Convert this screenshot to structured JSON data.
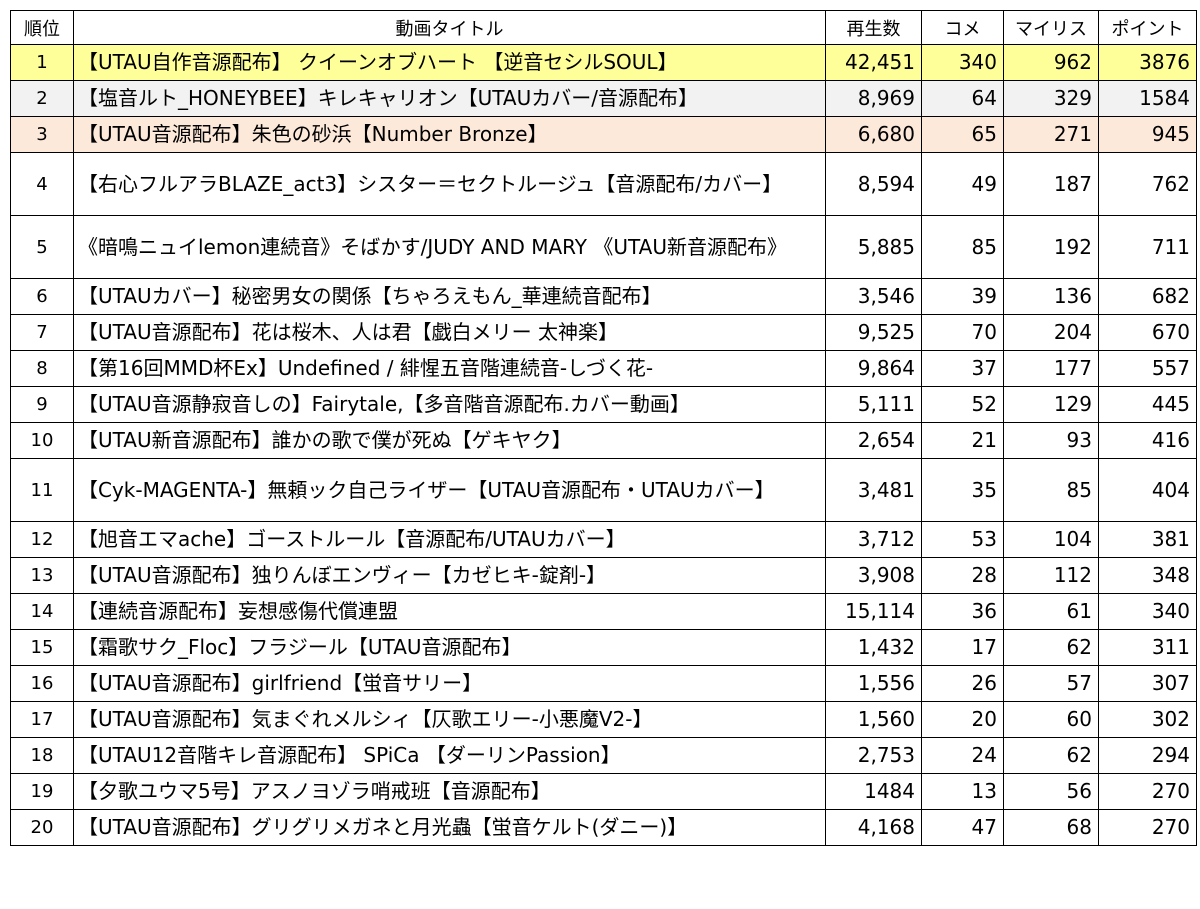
{
  "header": {
    "rank": "順位",
    "title": "動画タイトル",
    "views": "再生数",
    "comments": "コメ",
    "mylist": "マイリス",
    "points": "ポイント"
  },
  "row_colors": {
    "first": "#ffff99",
    "second": "#f2f2f2",
    "third": "#fde9d9",
    "default": "#ffffff"
  },
  "rows": [
    {
      "rank": "1",
      "title": "【UTAU自作音源配布】 クイーンオブハート 【逆音セシルSOUL】",
      "views": "42,451",
      "comments": "340",
      "mylist": "962",
      "points": "3876"
    },
    {
      "rank": "2",
      "title": "【塩音ルト_HONEYBEE】キレキャリオン【UTAUカバー/音源配布】",
      "views": "8,969",
      "comments": "64",
      "mylist": "329",
      "points": "1584"
    },
    {
      "rank": "3",
      "title": "【UTAU音源配布】朱色の砂浜【Number Bronze】",
      "views": "6,680",
      "comments": "65",
      "mylist": "271",
      "points": "945"
    },
    {
      "rank": "4",
      "title": "【右心フルアラBLAZE_act3】シスター＝セクトルージュ【音源配布/カバー】",
      "views": "8,594",
      "comments": "49",
      "mylist": "187",
      "points": "762"
    },
    {
      "rank": "5",
      "title": "《暗鳴ニュイlemon連続音》そばかす/JUDY AND MARY 《UTAU新音源配布》",
      "views": "5,885",
      "comments": "85",
      "mylist": "192",
      "points": "711"
    },
    {
      "rank": "6",
      "title": "【UTAUカバー】秘密男女の関係【ちゃろえもん_華連続音配布】",
      "views": "3,546",
      "comments": "39",
      "mylist": "136",
      "points": "682"
    },
    {
      "rank": "7",
      "title": "【UTAU音源配布】花は桜木、人は君【戯白メリー 太神楽】",
      "views": "9,525",
      "comments": "70",
      "mylist": "204",
      "points": "670"
    },
    {
      "rank": "8",
      "title": "【第16回MMD杯Ex】Undefined / 緋惺五音階連続音-しづく花-",
      "views": "9,864",
      "comments": "37",
      "mylist": "177",
      "points": "557"
    },
    {
      "rank": "9",
      "title": "【UTAU音源静寂音しの】Fairytale,【多音階音源配布.カバー動画】",
      "views": "5,111",
      "comments": "52",
      "mylist": "129",
      "points": "445"
    },
    {
      "rank": "10",
      "title": "【UTAU新音源配布】誰かの歌で僕が死ぬ【ゲキヤク】",
      "views": "2,654",
      "comments": "21",
      "mylist": "93",
      "points": "416"
    },
    {
      "rank": "11",
      "title": "【Cyk-MAGENTA-】無頼ック自己ライザー【UTAU音源配布・UTAUカバー】",
      "views": "3,481",
      "comments": "35",
      "mylist": "85",
      "points": "404"
    },
    {
      "rank": "12",
      "title": "【旭音エマache】ゴーストルール【音源配布/UTAUカバー】",
      "views": "3,712",
      "comments": "53",
      "mylist": "104",
      "points": "381"
    },
    {
      "rank": "13",
      "title": "【UTAU音源配布】独りんぼエンヴィー【カゼヒキ-錠剤-】",
      "views": "3,908",
      "comments": "28",
      "mylist": "112",
      "points": "348"
    },
    {
      "rank": "14",
      "title": "【連続音源配布】妄想感傷代償連盟",
      "views": "15,114",
      "comments": "36",
      "mylist": "61",
      "points": "340"
    },
    {
      "rank": "15",
      "title": "【霜歌サク_Floc】フラジール【UTAU音源配布】",
      "views": "1,432",
      "comments": "17",
      "mylist": "62",
      "points": "311"
    },
    {
      "rank": "16",
      "title": "【UTAU音源配布】girlfriend【蛍音サリー】",
      "views": "1,556",
      "comments": "26",
      "mylist": "57",
      "points": "307"
    },
    {
      "rank": "17",
      "title": "【UTAU音源配布】気まぐれメルシィ【仄歌エリー-小悪魔V2-】",
      "views": "1,560",
      "comments": "20",
      "mylist": "60",
      "points": "302"
    },
    {
      "rank": "18",
      "title": "【UTAU12音階キレ音源配布】 SPiCa 【ダーリンPassion】",
      "views": "2,753",
      "comments": "24",
      "mylist": "62",
      "points": "294"
    },
    {
      "rank": "19",
      "title": "【夕歌ユウマ5号】アスノヨゾラ哨戒班【音源配布】",
      "views": "1484",
      "comments": "13",
      "mylist": "56",
      "points": "270"
    },
    {
      "rank": "20",
      "title": "【UTAU音源配布】グリグリメガネと月光蟲【蛍音ケルト(ダニー)】",
      "views": "4,168",
      "comments": "47",
      "mylist": "68",
      "points": "270"
    }
  ]
}
